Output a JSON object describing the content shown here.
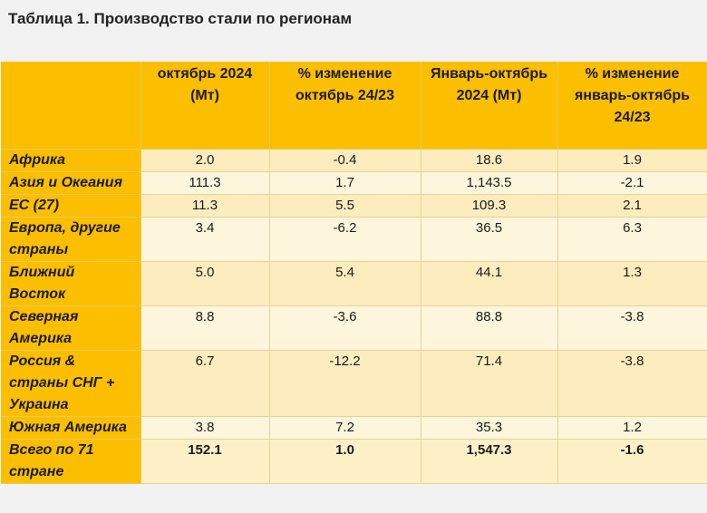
{
  "title": "Таблица 1. Производство стали по регионам",
  "headers": [
    "",
    "октябрь 2024 (Мт)",
    "% изменение октябрь 24/23",
    "Январь-октябрь 2024 (Мт)",
    "% изменение январь-октябрь 24/23"
  ],
  "rows": [
    {
      "region": "Африка",
      "oct": "2.0",
      "oct_chg": "-0.4",
      "ytd": "18.6",
      "ytd_chg": "1.9"
    },
    {
      "region": "Азия и Океания",
      "oct": "111.3",
      "oct_chg": "1.7",
      "ytd": "1,143.5",
      "ytd_chg": "-2.1"
    },
    {
      "region": "ЕС (27)",
      "oct": "11.3",
      "oct_chg": "5.5",
      "ytd": "109.3",
      "ytd_chg": "2.1"
    },
    {
      "region": "Европа, другие страны",
      "oct": "3.4",
      "oct_chg": "-6.2",
      "ytd": "36.5",
      "ytd_chg": "6.3"
    },
    {
      "region": "Ближний Восток",
      "oct": "5.0",
      "oct_chg": "5.4",
      "ytd": "44.1",
      "ytd_chg": "1.3"
    },
    {
      "region": "Северная Америка",
      "oct": "8.8",
      "oct_chg": "-3.6",
      "ytd": "88.8",
      "ytd_chg": "-3.8"
    },
    {
      "region": "Россия & страны СНГ + Украина",
      "oct": "6.7",
      "oct_chg": "-12.2",
      "ytd": "71.4",
      "ytd_chg": "-3.8"
    },
    {
      "region": "Южная Америка",
      "oct": "3.8",
      "oct_chg": "7.2",
      "ytd": "35.3",
      "ytd_chg": "1.2"
    }
  ],
  "total": {
    "region": "Всего по 71 стране",
    "oct": "152.1",
    "oct_chg": "1.0",
    "ytd": "1,547.3",
    "ytd_chg": "-1.6"
  }
}
